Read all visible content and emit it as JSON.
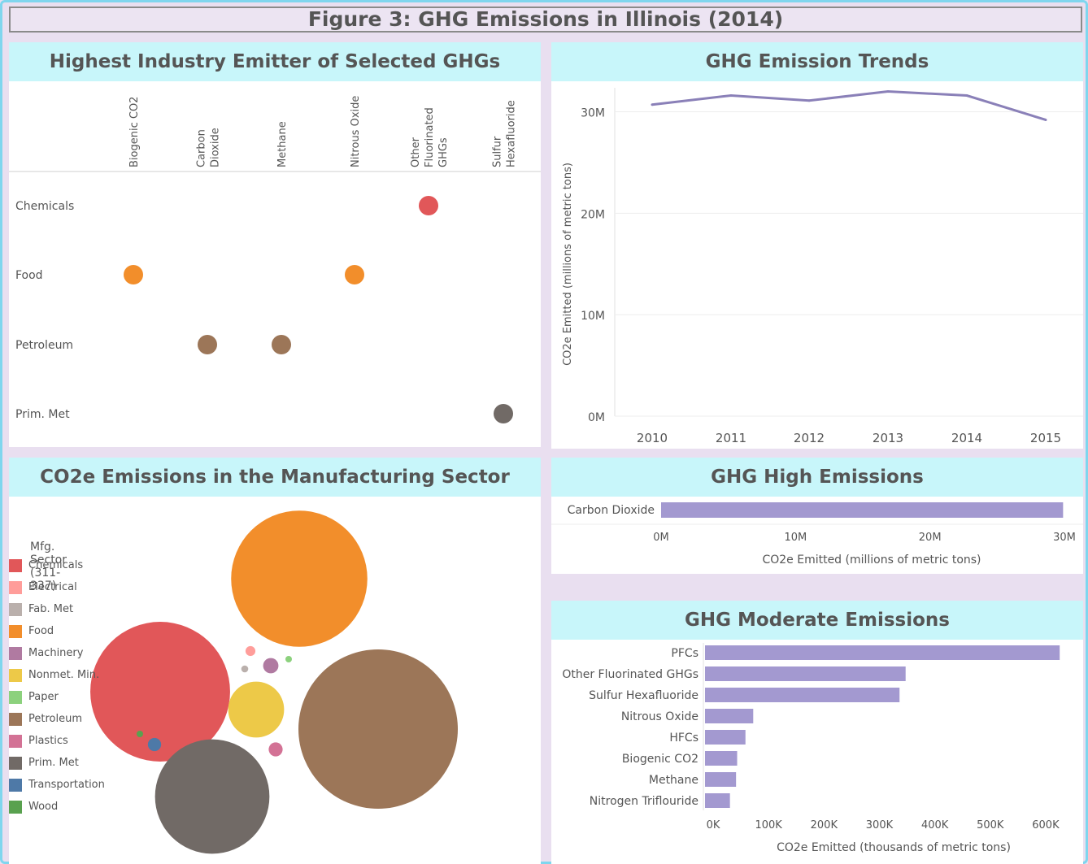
{
  "page_title": "Figure 3: GHG Emissions in Illinois (2014)",
  "panels": {
    "emitter": {
      "title": "Highest Industry Emitter of Selected GHGs"
    },
    "trends": {
      "title": "GHG Emission Trends"
    },
    "manufacturing": {
      "title": "CO2e Emissions in the Manufacturing Sector"
    },
    "high": {
      "title": "GHG High Emissions"
    },
    "moderate": {
      "title": "GHG Moderate Emissions"
    }
  },
  "chart_data": [
    {
      "type": "scatter",
      "title": "Highest Industry Emitter of Selected GHGs",
      "columns": [
        [
          "Biogenic CO2"
        ],
        [
          "Carbon",
          "Dioxide"
        ],
        [
          "Methane"
        ],
        [
          "Nitrous Oxide"
        ],
        [
          "Other",
          "Fluorinated",
          "GHGs"
        ],
        [
          "Sulfur",
          "Hexafluoride"
        ]
      ],
      "rows": [
        "Chemicals",
        "Food",
        "Petroleum",
        "Prim. Met"
      ],
      "points": [
        {
          "row": "Chemicals",
          "col": 4,
          "color": "#e15759"
        },
        {
          "row": "Food",
          "col": 0,
          "color": "#f28e2b"
        },
        {
          "row": "Food",
          "col": 3,
          "color": "#f28e2b"
        },
        {
          "row": "Petroleum",
          "col": 1,
          "color": "#9c7658"
        },
        {
          "row": "Petroleum",
          "col": 2,
          "color": "#9c7658"
        },
        {
          "row": "Prim. Met",
          "col": 5,
          "color": "#716a66"
        }
      ]
    },
    {
      "type": "line",
      "title": "GHG Emission Trends",
      "x": [
        2010,
        2011,
        2012,
        2013,
        2014,
        2015
      ],
      "y": [
        30.7,
        31.6,
        31.1,
        32.0,
        31.6,
        29.2
      ],
      "ylabel": "CO2e Emitted (millions of metric tons)",
      "ylim": [
        0,
        33
      ],
      "yticks": [
        {
          "v": 0,
          "label": "0M"
        },
        {
          "v": 10,
          "label": "10M"
        },
        {
          "v": 20,
          "label": "20M"
        },
        {
          "v": 30,
          "label": "30M"
        }
      ],
      "color": "#8a80b8"
    },
    {
      "type": "bubble",
      "title": "CO2e Emissions in the Manufacturing Sector",
      "legend_title": "Mfg. Sector (311-337)",
      "categories": [
        {
          "name": "Chemicals",
          "color": "#e15759",
          "value": 100
        },
        {
          "name": "Electrical",
          "color": "#ff9d9a",
          "value": 0.5
        },
        {
          "name": "Fab. Met",
          "color": "#bab0ac",
          "value": 0.25
        },
        {
          "name": "Food",
          "color": "#f28e2b",
          "value": 95
        },
        {
          "name": "Machinery",
          "color": "#b07aa1",
          "value": 1.2
        },
        {
          "name": "Nonmet. Min.",
          "color": "#edc948",
          "value": 16
        },
        {
          "name": "Paper",
          "color": "#8cd17d",
          "value": 0.08
        },
        {
          "name": "Petroleum",
          "color": "#9c7658",
          "value": 130
        },
        {
          "name": "Plastics",
          "color": "#d37295",
          "value": 1.0
        },
        {
          "name": "Prim. Met",
          "color": "#716a66",
          "value": 67
        },
        {
          "name": "Transportation",
          "color": "#4e79a7",
          "value": 0.9
        },
        {
          "name": "Wood",
          "color": "#59a14f",
          "value": 0.1
        }
      ]
    },
    {
      "type": "bar",
      "title": "GHG High Emissions",
      "categories": [
        "Carbon Dioxide"
      ],
      "values": [
        29.9
      ],
      "xlabel": "CO2e Emitted (millions of metric tons)",
      "xlim": [
        0,
        30
      ],
      "xticks": [
        {
          "v": 0,
          "label": "0M"
        },
        {
          "v": 10,
          "label": "10M"
        },
        {
          "v": 20,
          "label": "20M"
        },
        {
          "v": 30,
          "label": "30M"
        }
      ],
      "color": "#a399d0"
    },
    {
      "type": "bar",
      "title": "GHG Moderate Emissions",
      "categories": [
        "PFCs",
        "Other Fluorinated GHGs",
        "Sulfur Hexafluoride",
        "Nitrous Oxide",
        "HFCs",
        "Biogenic CO2",
        "Methane",
        "Nitrogen Triflouride"
      ],
      "values": [
        640,
        362,
        351,
        87,
        73,
        58,
        56,
        45
      ],
      "xlabel": "CO2e Emitted (thousands of metric tons)",
      "xlim": [
        0,
        650
      ],
      "xticks": [
        {
          "v": 0,
          "label": "0K"
        },
        {
          "v": 100,
          "label": "100K"
        },
        {
          "v": 200,
          "label": "200K"
        },
        {
          "v": 300,
          "label": "300K"
        },
        {
          "v": 400,
          "label": "400K"
        },
        {
          "v": 500,
          "label": "500K"
        },
        {
          "v": 600,
          "label": "600K"
        }
      ],
      "color": "#a399d0"
    }
  ]
}
